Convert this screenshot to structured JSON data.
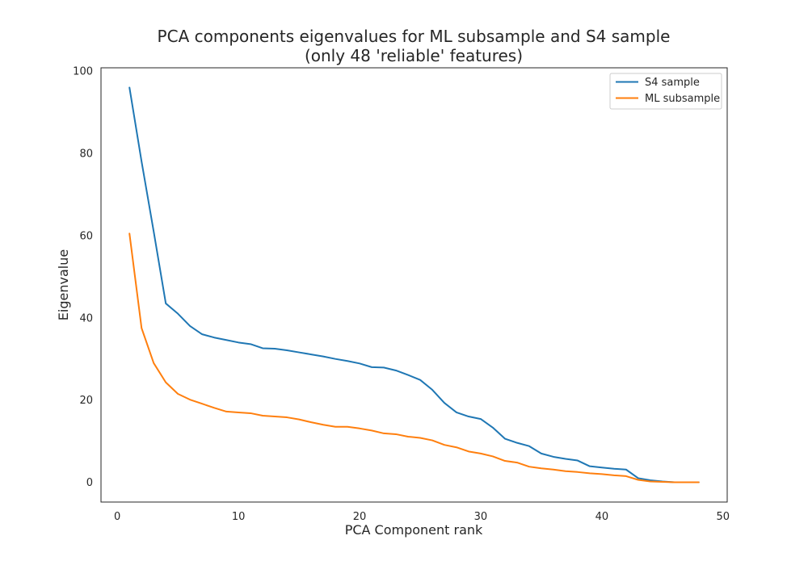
{
  "chart_data": {
    "type": "line",
    "title": "PCA components eigenvalues for ML subsample and S4 sample",
    "subtitle": "(only 48 'reliable' features)",
    "xlabel": "PCA Component rank",
    "ylabel": "Eigenvalue",
    "xlim": [
      -1.35,
      50.35
    ],
    "ylim": [
      -4.8,
      100.8
    ],
    "xticks": [
      0,
      10,
      20,
      30,
      40,
      50
    ],
    "yticks": [
      0,
      20,
      40,
      60,
      80,
      100
    ],
    "grid": false,
    "legend_position": "top-right",
    "x": [
      1,
      2,
      3,
      4,
      5,
      6,
      7,
      8,
      9,
      10,
      11,
      12,
      13,
      14,
      15,
      16,
      17,
      18,
      19,
      20,
      21,
      22,
      23,
      24,
      25,
      26,
      27,
      28,
      29,
      30,
      31,
      32,
      33,
      34,
      35,
      36,
      37,
      38,
      39,
      40,
      41,
      42,
      43,
      44,
      45,
      46,
      47,
      48
    ],
    "series": [
      {
        "name": "S4 sample",
        "color": "#1f77b4",
        "values": [
          96,
          78,
          61,
          43.5,
          41,
          38,
          36,
          35.2,
          34.6,
          34,
          33.6,
          32.6,
          32.5,
          32.1,
          31.6,
          31.1,
          30.6,
          30,
          29.5,
          28.9,
          28,
          27.9,
          27.2,
          26.1,
          24.9,
          22.5,
          19.3,
          17,
          16,
          15.4,
          13.3,
          10.6,
          9.6,
          8.8,
          7,
          6.2,
          5.7,
          5.3,
          3.9,
          3.6,
          3.3,
          3.1,
          1,
          0.5,
          0.2,
          0,
          0,
          0
        ]
      },
      {
        "name": "ML subsample",
        "color": "#ff7f0e",
        "values": [
          60.5,
          37.5,
          29,
          24.3,
          21.5,
          20.1,
          19.1,
          18.1,
          17.2,
          17,
          16.8,
          16.2,
          16,
          15.8,
          15.3,
          14.6,
          14,
          13.5,
          13.5,
          13.1,
          12.6,
          11.9,
          11.7,
          11.1,
          10.8,
          10.2,
          9.1,
          8.5,
          7.5,
          7,
          6.3,
          5.2,
          4.8,
          3.8,
          3.4,
          3.1,
          2.7,
          2.5,
          2.2,
          2,
          1.7,
          1.5,
          0.6,
          0.2,
          0.1,
          0,
          0,
          0
        ]
      }
    ]
  }
}
